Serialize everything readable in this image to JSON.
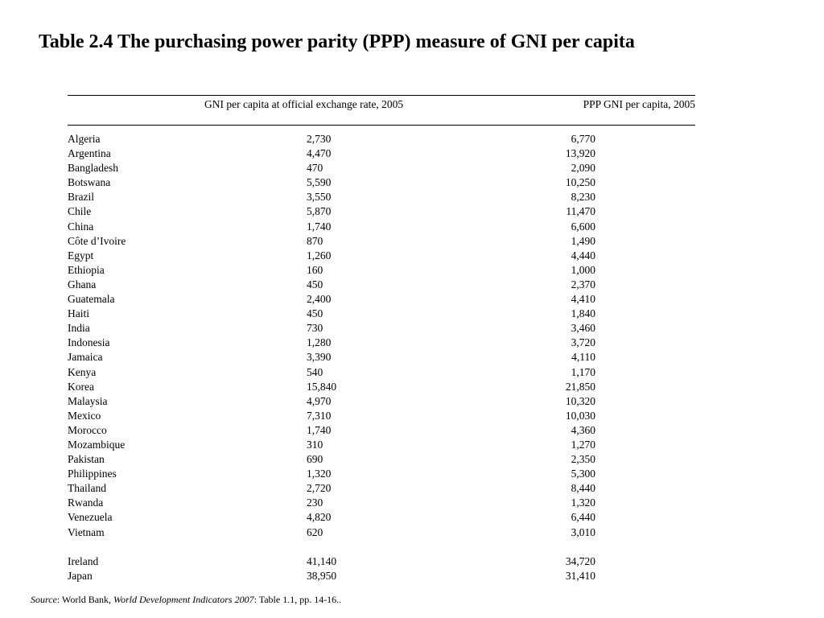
{
  "title": "Table 2.4 The purchasing power parity (PPP) measure of GNI per capita",
  "table": {
    "headers": {
      "gni": "GNI per capita at official exchange rate, 2005",
      "ppp": "PPP GNI per capita, 2005"
    },
    "rows": [
      {
        "country": "Algeria",
        "gni": "2,730",
        "ppp": "6,770"
      },
      {
        "country": "Argentina",
        "gni": "4,470",
        "ppp": "13,920"
      },
      {
        "country": "Bangladesh",
        "gni": "470",
        "ppp": "2,090"
      },
      {
        "country": "Botswana",
        "gni": "5,590",
        "ppp": "10,250"
      },
      {
        "country": "Brazil",
        "gni": "3,550",
        "ppp": "8,230"
      },
      {
        "country": "Chile",
        "gni": "5,870",
        "ppp": "11,470"
      },
      {
        "country": "China",
        "gni": "1,740",
        "ppp": "6,600"
      },
      {
        "country": "Côte d’Ivoire",
        "gni": "870",
        "ppp": "1,490"
      },
      {
        "country": "Egypt",
        "gni": "1,260",
        "ppp": "4,440"
      },
      {
        "country": "Ethiopia",
        "gni": "160",
        "ppp": "1,000"
      },
      {
        "country": "Ghana",
        "gni": "450",
        "ppp": "2,370"
      },
      {
        "country": "Guatemala",
        "gni": "2,400",
        "ppp": "4,410"
      },
      {
        "country": "Haiti",
        "gni": "450",
        "ppp": "1,840"
      },
      {
        "country": "India",
        "gni": "730",
        "ppp": "3,460"
      },
      {
        "country": "Indonesia",
        "gni": "1,280",
        "ppp": "3,720"
      },
      {
        "country": "Jamaica",
        "gni": "3,390",
        "ppp": "4,110"
      },
      {
        "country": "Kenya",
        "gni": "540",
        "ppp": "1,170"
      },
      {
        "country": "Korea",
        "gni": "15,840",
        "ppp": "21,850"
      },
      {
        "country": "Malaysia",
        "gni": "4,970",
        "ppp": "10,320"
      },
      {
        "country": "Mexico",
        "gni": "7,310",
        "ppp": "10,030"
      },
      {
        "country": "Morocco",
        "gni": "1,740",
        "ppp": "4,360"
      },
      {
        "country": "Mozambique",
        "gni": "310",
        "ppp": "1,270"
      },
      {
        "country": "Pakistan",
        "gni": "690",
        "ppp": "2,350"
      },
      {
        "country": "Philippines",
        "gni": "1,320",
        "ppp": "5,300"
      },
      {
        "country": "Thailand",
        "gni": "2,720",
        "ppp": "8,440"
      },
      {
        "country": "Rwanda",
        "gni": "230",
        "ppp": "1,320"
      },
      {
        "country": "Venezuela",
        "gni": "4,820",
        "ppp": "6,440"
      },
      {
        "country": "Vietnam",
        "gni": "620",
        "ppp": "3,010"
      }
    ],
    "extra_rows": [
      {
        "country": "Ireland",
        "gni": "41,140",
        "ppp": "34,720"
      },
      {
        "country": "Japan",
        "gni": "38,950",
        "ppp": "31,410"
      }
    ]
  },
  "source": {
    "label": "Source",
    "colon": ":  World Bank, ",
    "publication": "World Development Indicators 2007",
    "detail": ": Table 1.1, pp. 14-16.."
  }
}
